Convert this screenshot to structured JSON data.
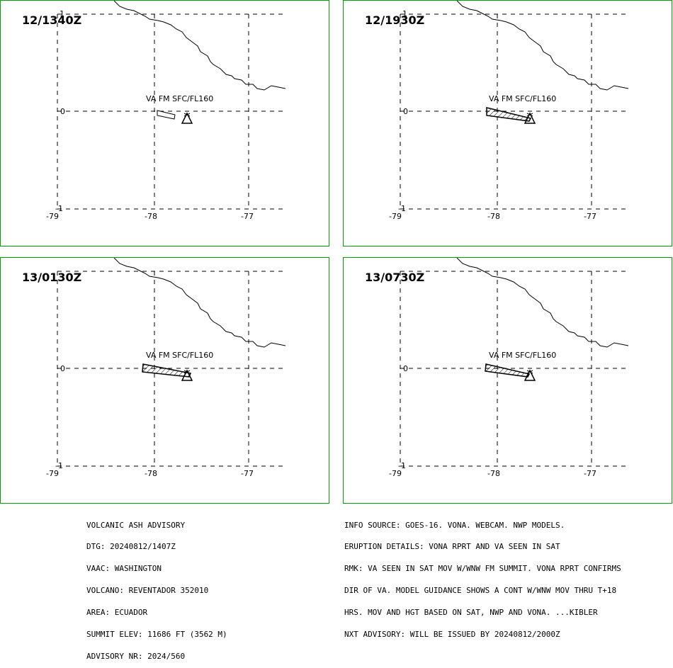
{
  "panels": [
    {
      "title": "12/1340Z",
      "va_label": "VA FM SFC/FL160",
      "plume": "small"
    },
    {
      "title": "12/1930Z",
      "va_label": "VA FM SFC/FL160",
      "plume": "large"
    },
    {
      "title": "13/0130Z",
      "va_label": "VA FM SFC/FL160",
      "plume": "large"
    },
    {
      "title": "13/0730Z",
      "va_label": "VA FM SFC/FL160",
      "plume": "medium"
    }
  ],
  "map": {
    "lon_ticks": [
      "-79",
      "-78",
      "-77"
    ],
    "lat_ticks": [
      "1",
      "0",
      "-1"
    ]
  },
  "advisory": {
    "title": "VOLCANIC ASH ADVISORY",
    "dtg": "DTG: 20240812/1407Z",
    "vaac": "VAAC: WASHINGTON",
    "volcano": "VOLCANO: REVENTADOR 352010",
    "area": "AREA: ECUADOR",
    "summit": "SUMMIT ELEV: 11686 FT (3562 M)",
    "advisory_nr": "ADVISORY NR: 2024/560"
  },
  "info": {
    "source": "INFO SOURCE: GOES-16. VONA. WEBCAM. NWP MODELS.",
    "eruption": "ERUPTION DETAILS: VONA RPRT AND VA SEEN IN SAT",
    "rmk1": "RMK: VA SEEN IN SAT MOV W/WNW FM SUMMIT. VONA RPRT CONFIRMS",
    "rmk2": "DIR OF VA. MODEL GUIDANCE SHOWS A CONT W/WNW MOV THRU T+18",
    "rmk3": "HRS. MOV AND HGT BASED ON SAT, NWP AND VONA. ...KIBLER",
    "next": "NXT ADVISORY: WILL BE ISSUED BY 20240812/2000Z"
  },
  "colors": {
    "panel_border": "#00a000",
    "lines": "#000000"
  }
}
